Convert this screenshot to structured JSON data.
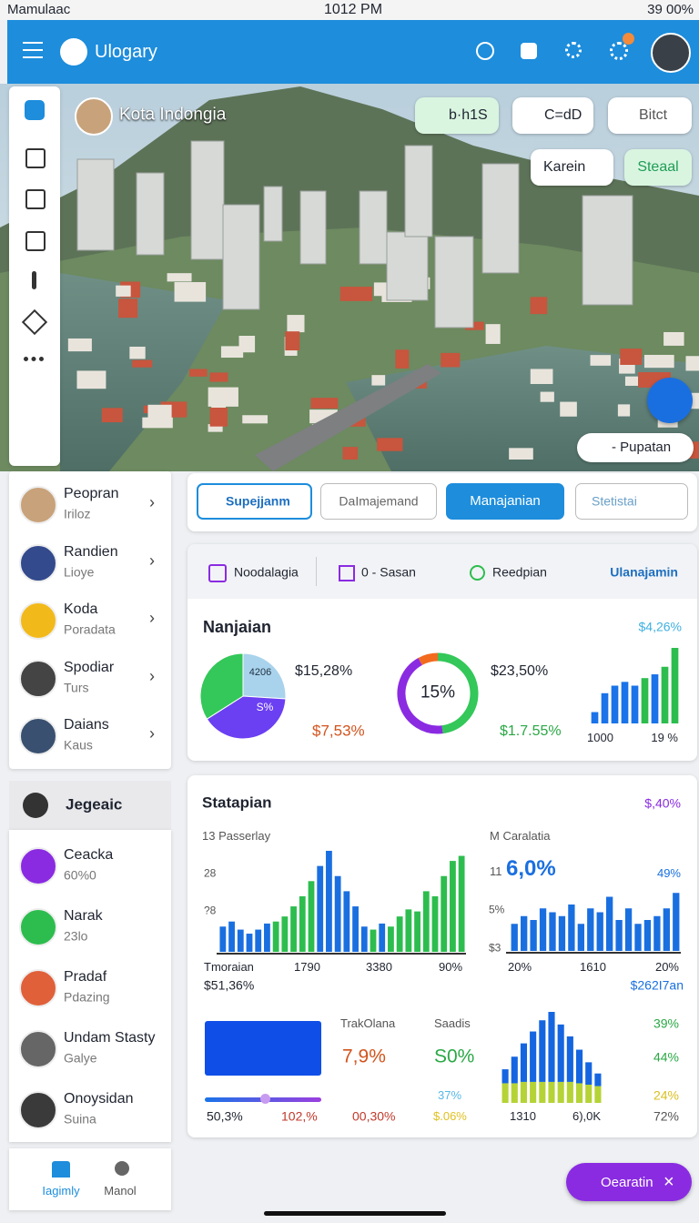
{
  "status": {
    "carrier": "Mamulaac",
    "time": "1012 PM",
    "battery": "39 00%"
  },
  "appbar": {
    "title": "Ulogary"
  },
  "hero": {
    "location": "Kota Indongia",
    "chips": [
      "b·h1S",
      "C=dD",
      "Bitct",
      "Karein",
      "Steaal"
    ],
    "dropdown": "- Pupatan"
  },
  "sidebar": {
    "items": [
      {
        "title": "Peopran",
        "subtitle": "Iriloz"
      },
      {
        "title": "Randien",
        "subtitle": "Lioye"
      },
      {
        "title": "Koda",
        "subtitle": "Poradata"
      },
      {
        "title": "Spodiar",
        "subtitle": "Turs"
      },
      {
        "title": "Daians",
        "subtitle": "Kaus"
      }
    ],
    "section": "Jegeaic",
    "section_items": [
      {
        "title": "Ceacka",
        "subtitle": "60%0"
      },
      {
        "title": "Narak",
        "subtitle": "23lo"
      },
      {
        "title": "Pradaf",
        "subtitle": "Pdazing"
      },
      {
        "title": "Undam Stasty",
        "subtitle": "Galye"
      },
      {
        "title": "Onoysidan",
        "subtitle": "Suina"
      }
    ]
  },
  "bottom_nav": [
    "Iagimly",
    "Manol"
  ],
  "tabs": [
    "Supejjanm",
    "DaImajemand",
    "Manajanian",
    "Stetistai"
  ],
  "overview": {
    "tabs": [
      "Noodalagia",
      "0 - Sasan",
      "Reedpian",
      "Ulanajamin"
    ],
    "title": "Nanjaian",
    "badge": "$4,26%",
    "pie_labels": [
      "4206",
      "S%"
    ],
    "pie": {
      "shares": [
        26,
        40,
        34
      ],
      "colors": [
        "#a9d3ec",
        "#6b3ff2",
        "#34c759"
      ]
    },
    "pie_values": [
      "$15,28%",
      "$7,53%"
    ],
    "donut_label": "15%",
    "donut": {
      "shares": [
        48,
        44,
        8
      ],
      "colors": [
        "#34c759",
        "#8a2be2",
        "#f26a1e"
      ]
    },
    "donut_values": [
      "$23,50%",
      "$1.7.55%"
    ],
    "bars": {
      "ylim": [
        0,
        100
      ],
      "series": [
        {
          "color": "#1a73e8",
          "values": [
            15,
            40,
            50,
            55,
            50,
            null,
            65,
            null,
            null
          ]
        },
        {
          "color": "#2dbd4e",
          "values": [
            null,
            null,
            null,
            null,
            null,
            60,
            null,
            75,
            100
          ]
        }
      ]
    },
    "bar_labels": [
      "1000",
      "19 %"
    ]
  },
  "statistics": {
    "title": "Statapian",
    "badge": "$,40%",
    "left": {
      "caption": "13 Passerlay",
      "axis_labels": [
        "28",
        "?8"
      ],
      "bars": {
        "ylim": [
          0,
          100
        ],
        "series": [
          {
            "color": "#1a6fe0",
            "values": [
              25,
              30,
              22,
              18,
              22,
              28,
              null,
              null,
              null,
              null,
              null,
              85,
              100,
              75,
              60,
              45,
              25,
              null,
              28,
              null,
              null,
              null,
              null,
              null,
              null,
              null,
              null,
              null
            ]
          },
          {
            "color": "#2dbd4e",
            "values": [
              null,
              null,
              null,
              null,
              null,
              null,
              30,
              35,
              45,
              55,
              70,
              null,
              null,
              null,
              null,
              null,
              null,
              22,
              null,
              25,
              35,
              42,
              40,
              60,
              55,
              75,
              90,
              95
            ]
          }
        ]
      },
      "x_labels": [
        "Tmoraian",
        "1790",
        "3380",
        "90%"
      ],
      "total": "$51,36%"
    },
    "right": {
      "caption": "M Caralatia",
      "prefix": "11",
      "value": "6,0%",
      "badge": "49%",
      "axis_labels": [
        "5%",
        "$3"
      ],
      "bars": {
        "ylim": [
          0,
          100
        ],
        "series": [
          {
            "color": "#1a6fe0",
            "values": [
              35,
              45,
              40,
              55,
              50,
              45,
              60,
              35,
              55,
              50,
              70,
              40,
              55,
              35,
              40,
              45,
              55,
              75
            ]
          }
        ]
      },
      "x_labels": [
        "20%",
        "1610",
        "20%"
      ],
      "total": "$262I7an"
    },
    "bottom": {
      "slider_labels": [
        "50,3%",
        "102,%"
      ],
      "track": {
        "label": "TrakOlana",
        "value": "7,9%",
        "sub": "00,30%"
      },
      "scale": {
        "label": "Saadis",
        "value": "S0%",
        "sub1": "37%",
        "sub2": "$.06%"
      },
      "bars": {
        "ylim": [
          0,
          130
        ],
        "stacked": true,
        "series": [
          {
            "color": "#b5d336",
            "values": [
              28,
              28,
              30,
              30,
              30,
              30,
              30,
              30,
              28,
              26,
              24
            ]
          },
          {
            "color": "#1565e0",
            "values": [
              20,
              38,
              55,
              72,
              88,
              100,
              82,
              65,
              48,
              32,
              18
            ]
          }
        ]
      },
      "x_labels": [
        "1310",
        "6),0K"
      ],
      "side_values": [
        "39%",
        "44%",
        "24%",
        "72%"
      ]
    }
  },
  "fab": "Oearatin"
}
